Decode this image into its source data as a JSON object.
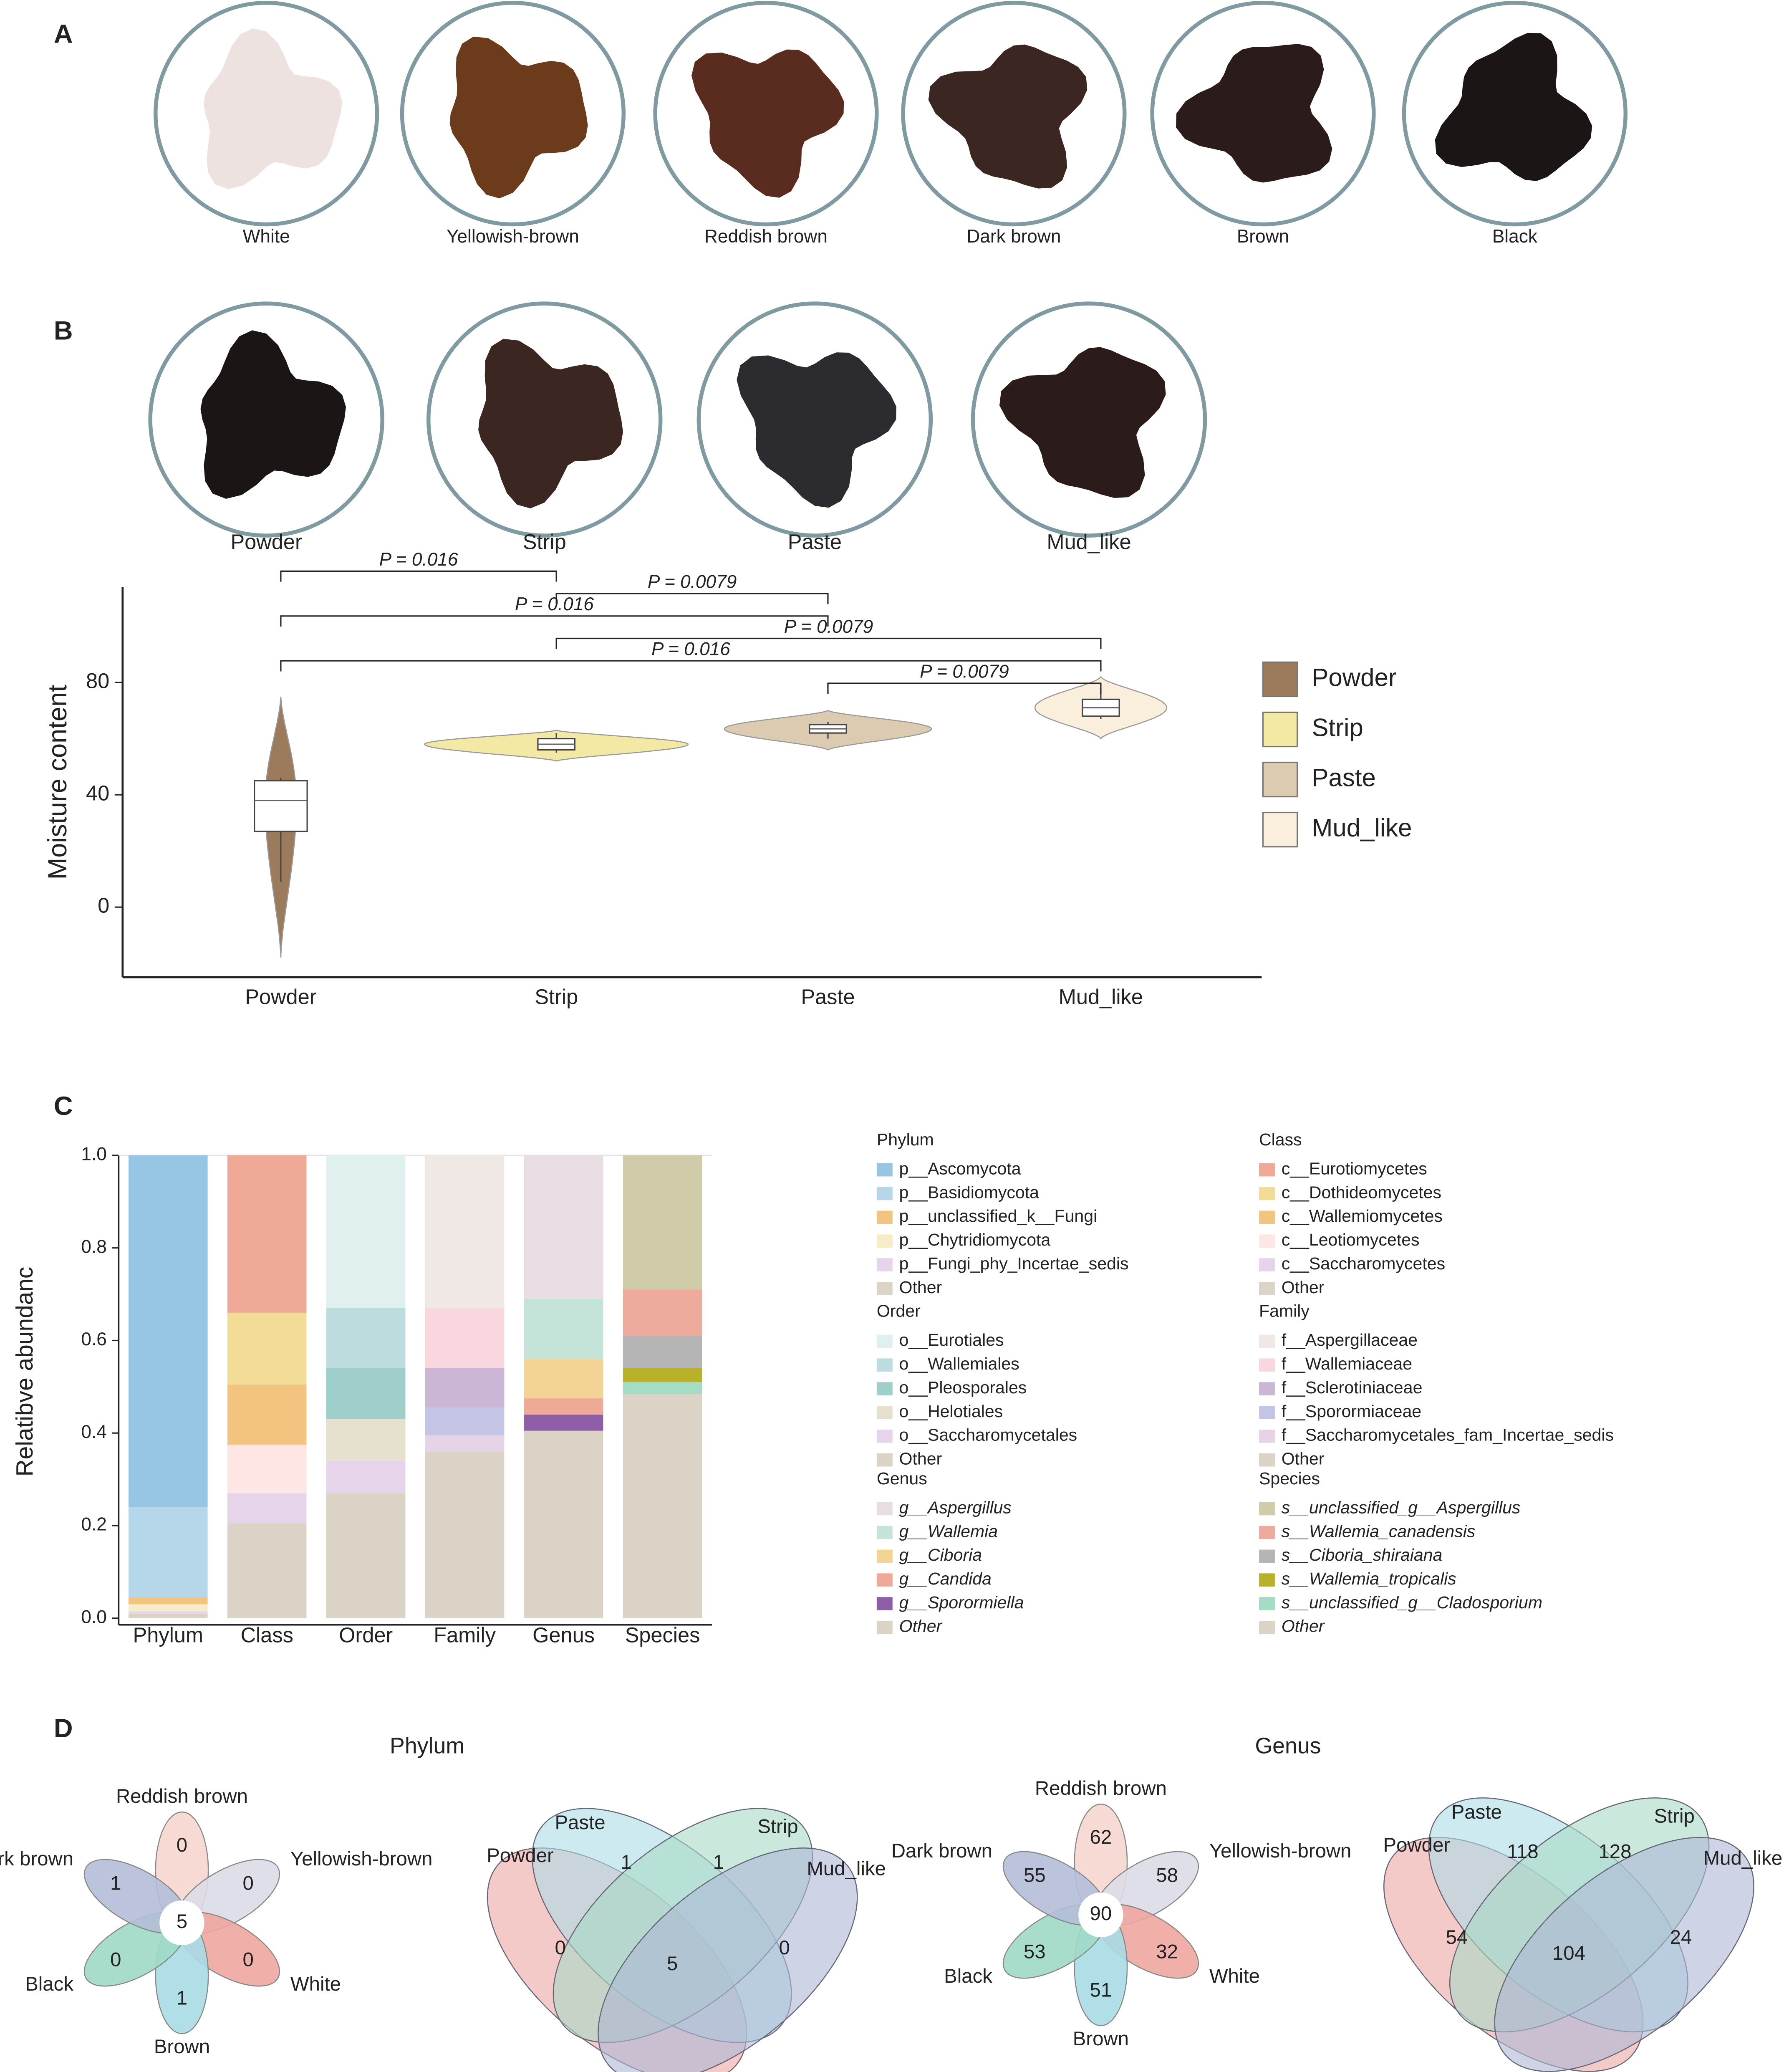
{
  "panel_labels": [
    "A",
    "B",
    "C",
    "D"
  ],
  "colour_samples": [
    {
      "label": "White",
      "color": "#eee2e0"
    },
    {
      "label": "Yellowish-brown",
      "color": "#6b3b1c"
    },
    {
      "label": "Reddish brown",
      "color": "#5a2c20"
    },
    {
      "label": "Dark brown",
      "color": "#3b2622"
    },
    {
      "label": "Brown",
      "color": "#2b1b1b"
    },
    {
      "label": "Black",
      "color": "#1b1516"
    }
  ],
  "form_samples": [
    {
      "label": "Powder",
      "color": "#1b1516"
    },
    {
      "label": "Strip",
      "color": "#3b2622"
    },
    {
      "label": "Paste",
      "color": "#2c2c30"
    },
    {
      "label": "Mud_like",
      "color": "#2b1b1b"
    }
  ],
  "chart_data": [
    {
      "type": "violin",
      "ylabel": "Moisture content",
      "categories": [
        "Powder",
        "Strip",
        "Paste",
        "Mud_like"
      ],
      "ylim": [
        -25,
        114
      ],
      "yticks": [
        0,
        40,
        80
      ],
      "legend": "right",
      "series": [
        {
          "name": "Powder",
          "color": "#9b7b5c",
          "min": -18,
          "max": 75,
          "whisker_low": 9,
          "q1": 27,
          "median": 38,
          "q3": 45,
          "whisker_high": 46
        },
        {
          "name": "Strip",
          "color": "#f3e9a5",
          "min": 52,
          "max": 63,
          "whisker_low": 55,
          "q1": 56,
          "median": 58,
          "q3": 60,
          "whisker_high": 62
        },
        {
          "name": "Paste",
          "color": "#dccbb1",
          "min": 56,
          "max": 70,
          "whisker_low": 60,
          "q1": 62,
          "median": 63.5,
          "q3": 65,
          "whisker_high": 66
        },
        {
          "name": "Mud_like",
          "color": "#faeedd",
          "min": 60,
          "max": 82,
          "whisker_low": 67,
          "q1": 68,
          "median": 71,
          "q3": 74,
          "whisker_high": 78
        }
      ],
      "comparisons": [
        {
          "from": "Powder",
          "to": "Strip",
          "label": "P = 0.016"
        },
        {
          "from": "Strip",
          "to": "Paste",
          "label": "P = 0.0079"
        },
        {
          "from": "Powder",
          "to": "Paste",
          "label": "P = 0.016"
        },
        {
          "from": "Strip",
          "to": "Mud_like",
          "label": "P = 0.0079"
        },
        {
          "from": "Powder",
          "to": "Mud_like",
          "label": "P = 0.016"
        },
        {
          "from": "Paste",
          "to": "Mud_like",
          "label": "P = 0.0079"
        }
      ]
    },
    {
      "type": "stacked_bar",
      "ylabel": "Relatibve abundanc",
      "categories": [
        "Phylum",
        "Class",
        "Order",
        "Family",
        "Genus",
        "Species"
      ],
      "ylim": [
        0,
        1
      ],
      "yticks": [
        {
          "value": 0,
          "label": "0.0"
        },
        {
          "value": 0.2,
          "label": "0.2"
        },
        {
          "value": 0.4,
          "label": "0.4"
        },
        {
          "value": 0.6,
          "label": "0.6"
        },
        {
          "value": 0.8,
          "label": "0.8"
        },
        {
          "value": 1,
          "label": "1.0"
        }
      ],
      "groups": [
        {
          "name": "Phylum",
          "italic": false,
          "series": [
            {
              "name": "p__Ascomycota",
              "color": "#96c6e3",
              "value": 0.76
            },
            {
              "name": "p__Basidiomycota",
              "color": "#b6d6e9",
              "value": 0.195
            },
            {
              "name": "p__unclassified_k__Fungi",
              "color": "#f2c47f",
              "value": 0.015
            },
            {
              "name": "p__Chytridiomycota",
              "color": "#f7ecc9",
              "value": 0.015
            },
            {
              "name": "p__Fungi_phy_Incertae_sedis",
              "color": "#e5d4ea",
              "value": 0.005
            },
            {
              "name": "Other",
              "color": "#dcd3c7",
              "value": 0.01
            }
          ]
        },
        {
          "name": "Class",
          "italic": false,
          "series": [
            {
              "name": "c__Eurotiomycetes",
              "color": "#eeaa96",
              "value": 0.34
            },
            {
              "name": "c__Dothideomycetes",
              "color": "#f3dc96",
              "value": 0.155
            },
            {
              "name": "c__Wallemiomycetes",
              "color": "#f2c47f",
              "value": 0.13
            },
            {
              "name": "c__Leotiomycetes",
              "color": "#fde6e3",
              "value": 0.105
            },
            {
              "name": "c__Saccharomycetes",
              "color": "#e5d4ea",
              "value": 0.065
            },
            {
              "name": "Other",
              "color": "#dcd3c7",
              "value": 0.205
            }
          ]
        },
        {
          "name": "Order",
          "italic": false,
          "series": [
            {
              "name": "o__Eurotiales",
              "color": "#dff0ee",
              "value": 0.33
            },
            {
              "name": "o__Wallemiales",
              "color": "#bcdcde",
              "value": 0.13
            },
            {
              "name": "o__Pleosporales",
              "color": "#9fcfcb",
              "value": 0.11
            },
            {
              "name": "o__Helotiales",
              "color": "#e6e0cf",
              "value": 0.09
            },
            {
              "name": "o__Saccharomycetales",
              "color": "#e5d4ea",
              "value": 0.07
            },
            {
              "name": "Other",
              "color": "#dcd3c7",
              "value": 0.27
            }
          ]
        },
        {
          "name": "Family",
          "italic": false,
          "series": [
            {
              "name": "f__Aspergillaceae",
              "color": "#efe8e4",
              "value": 0.33
            },
            {
              "name": "f__Wallemiaceae",
              "color": "#f9d7de",
              "value": 0.13
            },
            {
              "name": "f__Sclerotiniaceae",
              "color": "#cbb6d6",
              "value": 0.085
            },
            {
              "name": "f__Sporormiaceae",
              "color": "#c3c4e6",
              "value": 0.06
            },
            {
              "name": "f__Saccharomycetales_fam_Incertae_sedis",
              "color": "#e6d3e6",
              "value": 0.035
            },
            {
              "name": "Other",
              "color": "#dcd3c7",
              "value": 0.36
            }
          ]
        },
        {
          "name": "Genus",
          "italic": true,
          "series": [
            {
              "name": "g__Aspergillus",
              "color": "#e8dde3",
              "value": 0.31
            },
            {
              "name": "g__Wallemia",
              "color": "#c4e4da",
              "value": 0.13
            },
            {
              "name": "g__Ciboria",
              "color": "#f3d495",
              "value": 0.085
            },
            {
              "name": "g__Candida",
              "color": "#eeaa96",
              "value": 0.035
            },
            {
              "name": "g__Sporormiella",
              "color": "#8e5ea8",
              "value": 0.035
            },
            {
              "name": "Other",
              "color": "#dcd3c7",
              "value": 0.405
            }
          ]
        },
        {
          "name": "Species",
          "italic": true,
          "series": [
            {
              "name": "s__unclassified_g__Aspergillus",
              "color": "#d0cba9",
              "value": 0.29
            },
            {
              "name": "s__Wallemia_canadensis",
              "color": "#eeaa9c",
              "value": 0.1
            },
            {
              "name": "s__Ciboria_shiraiana",
              "color": "#b5b5b5",
              "value": 0.07
            },
            {
              "name": "s__Wallemia_tropicalis",
              "color": "#b7b22a",
              "value": 0.03
            },
            {
              "name": "s__unclassified_g__Cladosporium",
              "color": "#a5dcc4",
              "value": 0.025
            },
            {
              "name": "Other",
              "color": "#dcd3c7",
              "value": 0.485
            }
          ]
        }
      ]
    }
  ],
  "venn": {
    "titles": [
      "Phylum",
      "Genus"
    ],
    "diagrams": [
      {
        "type": "flower",
        "center": 5,
        "sets": [
          {
            "name": "Reddish brown",
            "value": 0,
            "color": "#f6d6cf"
          },
          {
            "name": "Yellowish-brown",
            "value": 0,
            "color": "#dcdbe8"
          },
          {
            "name": "White",
            "value": 0,
            "color": "#eea6a0"
          },
          {
            "name": "Brown",
            "value": 1,
            "color": "#a9dbe5"
          },
          {
            "name": "Black",
            "value": 0,
            "color": "#9fd9c6"
          },
          {
            "name": "Dark brown",
            "value": 1,
            "color": "#b4bed8"
          }
        ]
      },
      {
        "type": "four",
        "center": 5,
        "sets": [
          {
            "name": "Powder",
            "value": 0,
            "color": "#eca7a4"
          },
          {
            "name": "Paste",
            "value": 1,
            "color": "#aedce8"
          },
          {
            "name": "Strip",
            "value": 1,
            "color": "#a8d8c4"
          },
          {
            "name": "Mud_like",
            "value": 0,
            "color": "#aeb8d6"
          }
        ]
      },
      {
        "type": "flower",
        "center": 90,
        "sets": [
          {
            "name": "Reddish brown",
            "value": 62,
            "color": "#f6d6cf"
          },
          {
            "name": "Yellowish-brown",
            "value": 58,
            "color": "#dcdbe8"
          },
          {
            "name": "White",
            "value": 32,
            "color": "#eea6a0"
          },
          {
            "name": "Brown",
            "value": 51,
            "color": "#a9dbe5"
          },
          {
            "name": "Black",
            "value": 53,
            "color": "#9fd9c6"
          },
          {
            "name": "Dark brown",
            "value": 55,
            "color": "#b4bed8"
          }
        ]
      },
      {
        "type": "four",
        "center": 104,
        "sets": [
          {
            "name": "Powder",
            "value": 54,
            "color": "#eca7a4"
          },
          {
            "name": "Paste",
            "value": 118,
            "color": "#aedce8"
          },
          {
            "name": "Strip",
            "value": 128,
            "color": "#a8d8c4"
          },
          {
            "name": "Mud_like",
            "value": 24,
            "color": "#aeb8d6"
          }
        ]
      }
    ]
  }
}
